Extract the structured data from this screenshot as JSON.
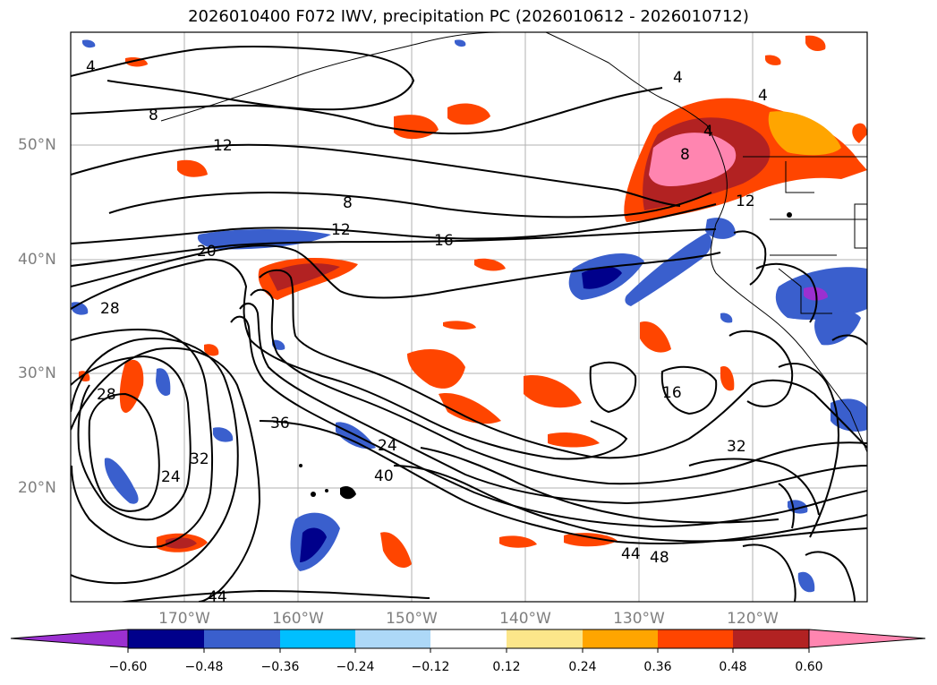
{
  "title": "2026010400 F072 IWV, precipitation PC (2026010612 - 2026010712)",
  "map": {
    "lat_labels": [
      "50°N",
      "40°N",
      "30°N",
      "20°N"
    ],
    "lon_labels": [
      "170°W",
      "160°W",
      "150°W",
      "140°W",
      "130°W",
      "120°W"
    ],
    "contour_labels": [
      "4",
      "8",
      "12",
      "8",
      "12",
      "16",
      "20",
      "28",
      "28",
      "24",
      "32",
      "36",
      "24",
      "40",
      "16",
      "32",
      "44",
      "48",
      "44",
      "4",
      "4",
      "4",
      "8",
      "12"
    ]
  },
  "colorbar": {
    "tick_labels": [
      "−0.60",
      "−0.48",
      "−0.36",
      "−0.24",
      "−0.12",
      "0.12",
      "0.24",
      "0.36",
      "0.48",
      "0.60"
    ],
    "colors": [
      "#9b30d0",
      "#00008b",
      "#3a5fcd",
      "#00bfff",
      "#add8f7",
      "#ffffff",
      "#fce68a",
      "#ffa500",
      "#ff4500",
      "#b22222",
      "#ff85b0"
    ]
  }
}
